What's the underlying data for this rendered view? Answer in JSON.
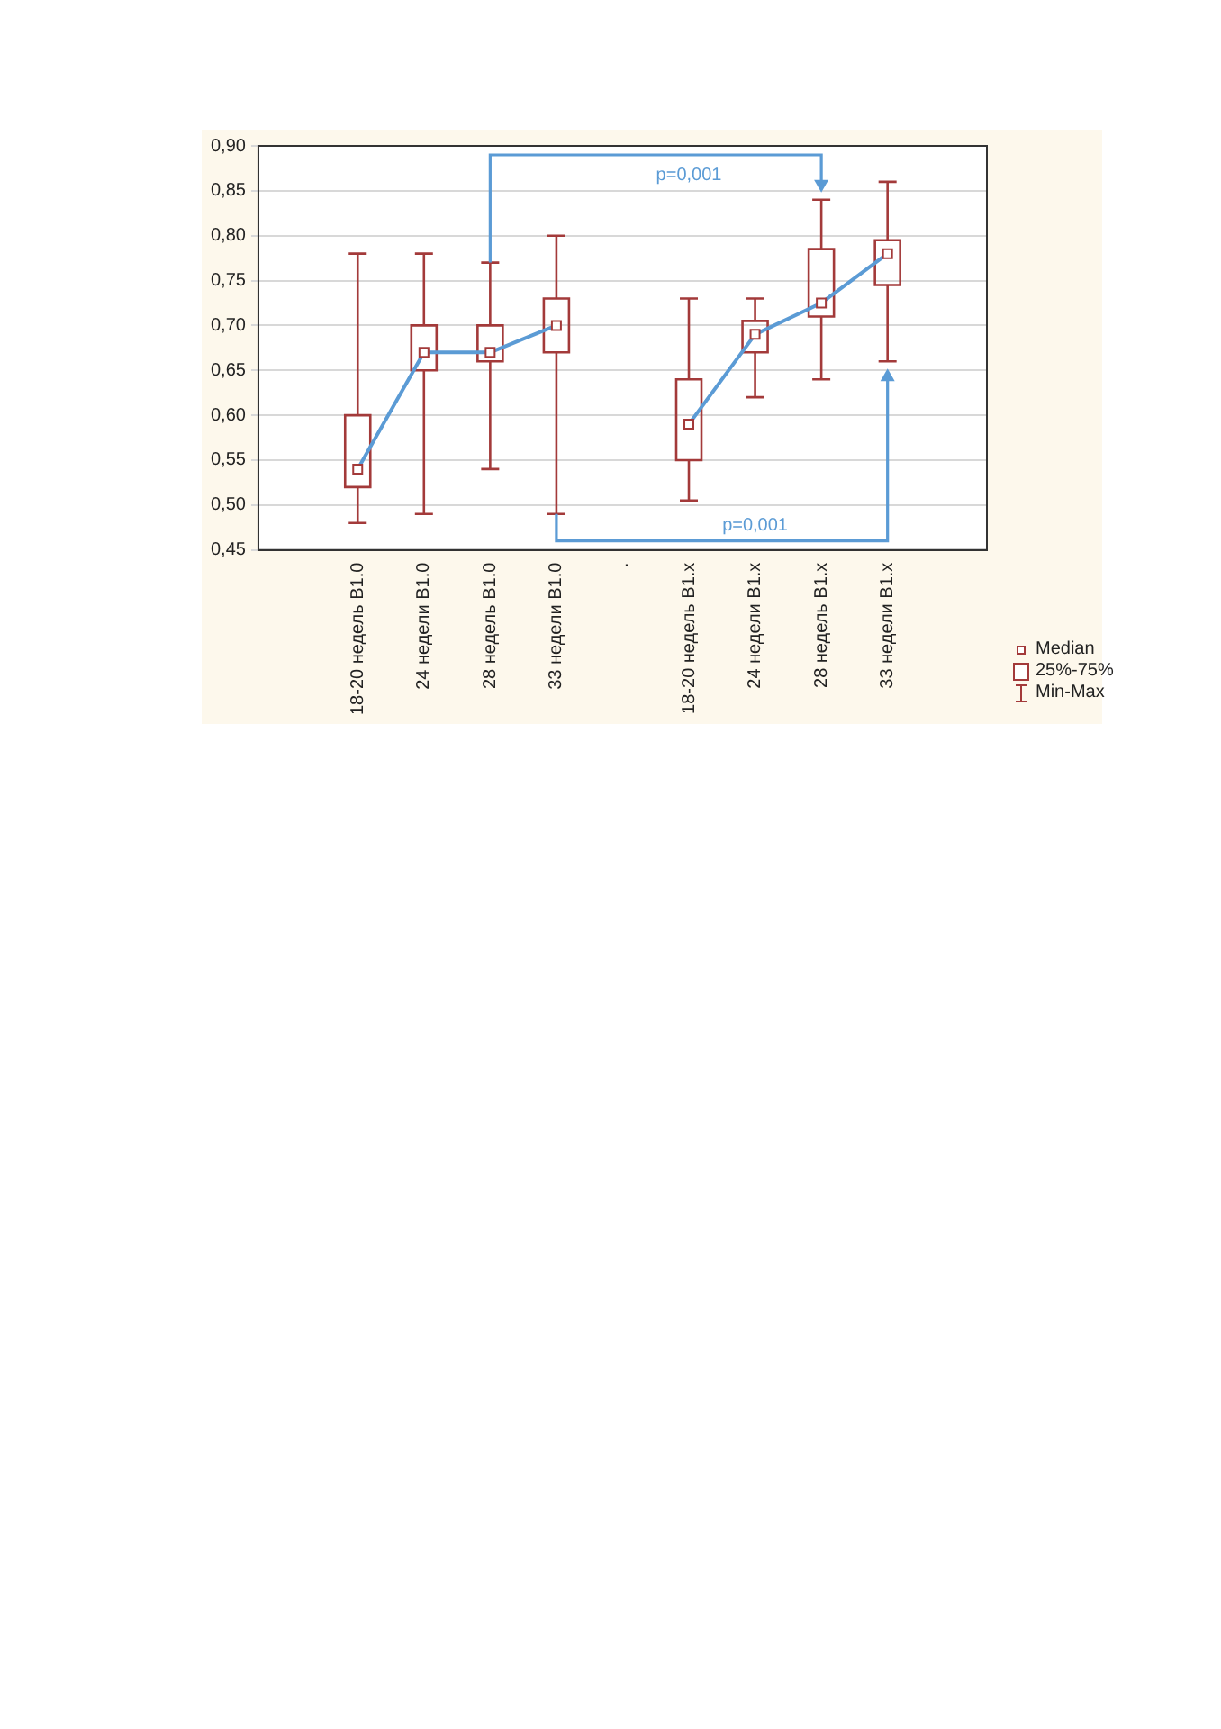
{
  "chart_data": {
    "type": "box",
    "categories": [
      null,
      "18-20 недель B1.0",
      "24 недели B1.0",
      "28 недель B1.0",
      "33 недели B1.0",
      ".",
      "18-20 недель B1.x",
      "24 недели B1.x",
      "28 недель B1.x",
      "33 недели B1.x",
      null
    ],
    "series": [
      {
        "color": "#a33a3a",
        "boxes": [
          null,
          {
            "low": 0.48,
            "q1": 0.52,
            "median": 0.54,
            "q3": 0.6,
            "high": 0.78
          },
          {
            "low": 0.49,
            "q1": 0.65,
            "median": 0.67,
            "q3": 0.7,
            "high": 0.78
          },
          {
            "low": 0.54,
            "q1": 0.66,
            "median": 0.67,
            "q3": 0.7,
            "high": 0.77
          },
          {
            "low": 0.49,
            "q1": 0.67,
            "median": 0.7,
            "q3": 0.73,
            "high": 0.8
          },
          null,
          {
            "low": 0.505,
            "q1": 0.55,
            "median": 0.59,
            "q3": 0.64,
            "high": 0.73
          },
          {
            "low": 0.62,
            "q1": 0.67,
            "median": 0.69,
            "q3": 0.705,
            "high": 0.73
          },
          {
            "low": 0.64,
            "q1": 0.71,
            "median": 0.725,
            "q3": 0.785,
            "high": 0.84
          },
          {
            "low": 0.66,
            "q1": 0.745,
            "median": 0.78,
            "q3": 0.795,
            "high": 0.86
          },
          null
        ]
      },
      {
        "type": "line",
        "color": "#5b9bd5",
        "values": [
          null,
          0.54,
          0.67,
          0.67,
          0.7,
          null,
          0.59,
          0.69,
          0.725,
          0.78,
          null
        ]
      }
    ],
    "ylim": [
      0.45,
      0.9
    ],
    "yticks": [
      {
        "value": 0.45,
        "label": "0,45"
      },
      {
        "value": 0.5,
        "label": "0,50"
      },
      {
        "value": 0.55,
        "label": "0,55"
      },
      {
        "value": 0.6,
        "label": "0,60"
      },
      {
        "value": 0.65,
        "label": "0,65"
      },
      {
        "value": 0.7,
        "label": "0,70"
      },
      {
        "value": 0.75,
        "label": "0,75"
      },
      {
        "value": 0.8,
        "label": "0,80"
      },
      {
        "value": 0.85,
        "label": "0,85"
      },
      {
        "value": 0.9,
        "label": "0,90"
      }
    ],
    "grid": "y",
    "marker": "none",
    "annotations": [
      "p=0,001",
      "p=0,001",
      "Median",
      "25%-75%",
      "Min-Max"
    ]
  }
}
